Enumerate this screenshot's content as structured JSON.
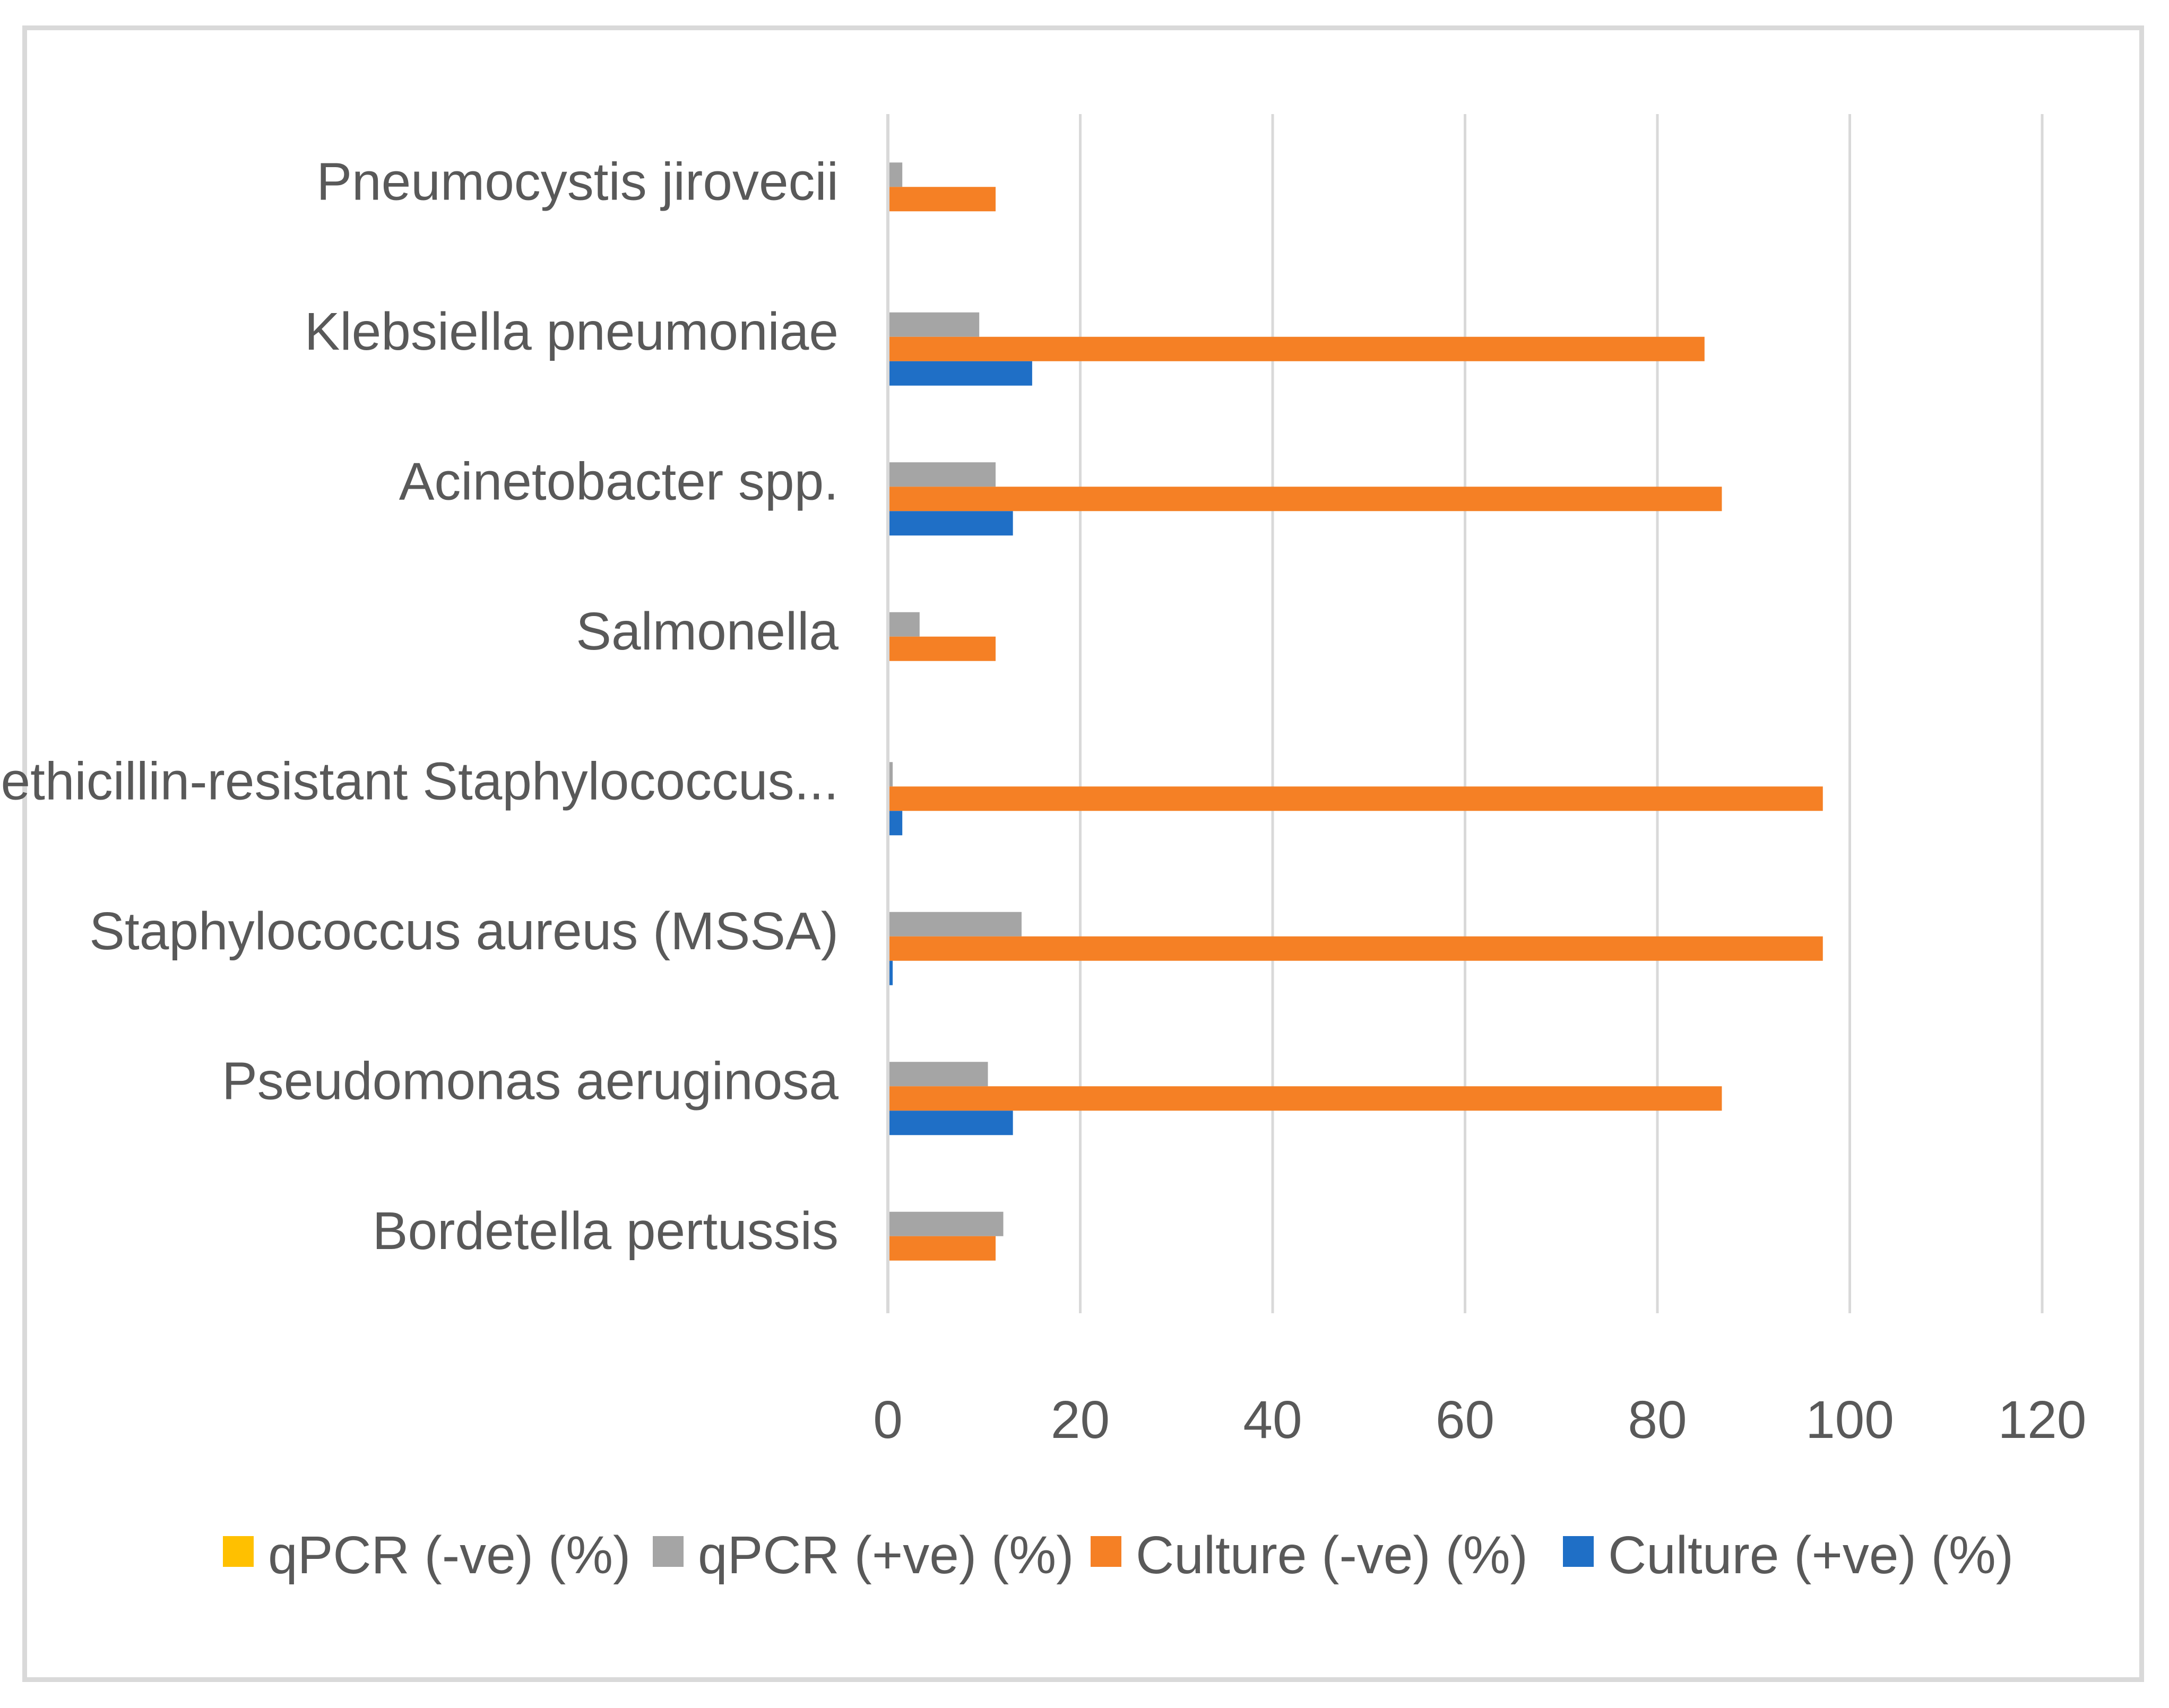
{
  "chart_data": {
    "type": "bar",
    "orientation": "horizontal",
    "title": "",
    "xlabel": "",
    "ylabel": "",
    "xlim": [
      0,
      120
    ],
    "x_ticks": [
      0,
      20,
      40,
      60,
      80,
      100,
      120
    ],
    "grid": true,
    "legend_position": "bottom",
    "categories": [
      "Bordetella pertussis",
      "Pseudomonas aeruginosa",
      "Staphylococcus aureus (MSSA)",
      "Methicillin-resistant Staphylococcus...",
      "Salmonella",
      "Acinetobacter spp.",
      "Klebsiella pneumoniae",
      "Pneumocystis jirovecii"
    ],
    "series": [
      {
        "name": "Culture (+ve) (%)",
        "color": "#1f6fc6",
        "values": [
          0,
          13,
          0.5,
          1.5,
          0,
          13,
          15,
          0
        ]
      },
      {
        "name": "Culture (-ve) (%)",
        "color": "#f58025",
        "values": [
          11.2,
          86.7,
          97.2,
          97.2,
          11.2,
          86.7,
          84.9,
          11.2
        ]
      },
      {
        "name": "qPCR (+ve) (%)",
        "color": "#a5a5a5",
        "values": [
          12,
          10.4,
          13.9,
          0.5,
          3.3,
          11.2,
          9.5,
          1.5
        ]
      },
      {
        "name": "qPCR (-ve) (%)",
        "color": "#ffc000",
        "values": [
          0,
          0,
          0,
          0,
          0,
          0,
          0,
          0
        ]
      }
    ],
    "legend_order": [
      "qPCR (-ve) (%)",
      "qPCR (+ve) (%)",
      "Culture (-ve) (%)",
      "Culture (+ve) (%)"
    ]
  },
  "colors": {
    "gridline": "#d9d9d9",
    "axis": "#d9d9d9",
    "text": "#595959",
    "frame": "#d9d9d9"
  }
}
